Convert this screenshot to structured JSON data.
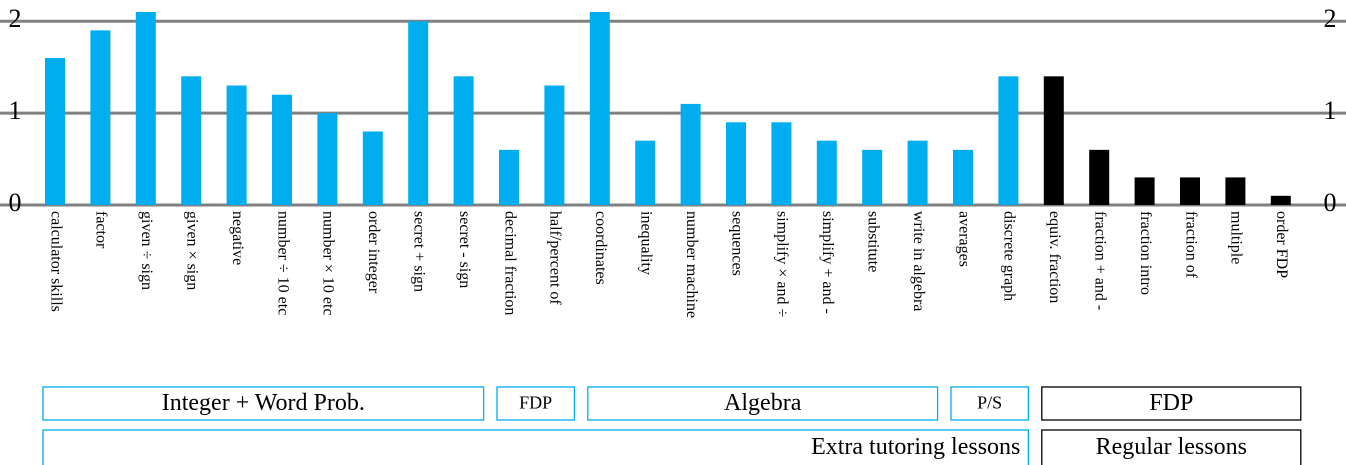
{
  "chart_data": {
    "type": "bar",
    "categories": [
      "calculator skills",
      "factor",
      "given ÷ sign",
      "given × sign",
      "negative",
      "number ÷ 10 etc",
      "number × 10 etc",
      "order integer",
      "secret + sign",
      "secret - sign",
      "decimal fraction",
      "half/percent of",
      "coordinates",
      "inequality",
      "number machine",
      "sequences",
      "simplify × and ÷",
      "simplify + and -",
      "substitute",
      "write in algebra",
      "averages",
      "discrete graph",
      "equiv. fraction",
      "fraction + and -",
      "fraction intro",
      "fraction of",
      "multiple",
      "order FDP"
    ],
    "values": [
      1.6,
      1.9,
      2.1,
      1.4,
      1.3,
      1.2,
      1.0,
      0.8,
      2.0,
      1.4,
      0.6,
      1.3,
      2.1,
      0.7,
      1.1,
      0.9,
      0.9,
      0.7,
      0.6,
      0.7,
      0.6,
      1.4,
      1.4,
      0.6,
      0.3,
      0.3,
      0.3,
      0.1
    ],
    "colors": [
      "#00aeef",
      "#00aeef",
      "#00aeef",
      "#00aeef",
      "#00aeef",
      "#00aeef",
      "#00aeef",
      "#00aeef",
      "#00aeef",
      "#00aeef",
      "#00aeef",
      "#00aeef",
      "#00aeef",
      "#00aeef",
      "#00aeef",
      "#00aeef",
      "#00aeef",
      "#00aeef",
      "#00aeef",
      "#00aeef",
      "#00aeef",
      "#00aeef",
      "#000000",
      "#000000",
      "#000000",
      "#000000",
      "#000000",
      "#000000"
    ],
    "ylim": [
      0,
      2.1
    ],
    "yticks": [
      0,
      1,
      2
    ],
    "y2lim": [
      0,
      2.1
    ],
    "y2ticks": [
      0,
      1,
      2
    ],
    "grid": true,
    "groups": [
      [
        {
          "label": "Integer + Word Prob.",
          "start": 0,
          "end": 9,
          "color": "#00aeef"
        },
        {
          "label": "FDP",
          "start": 10,
          "end": 11,
          "color": "#00aeef",
          "small_caps": true
        },
        {
          "label": "Algebra",
          "start": 12,
          "end": 19,
          "color": "#00aeef"
        },
        {
          "label": "P/S",
          "start": 20,
          "end": 21,
          "color": "#00aeef",
          "small_caps": true
        },
        {
          "label": "FDP",
          "start": 22,
          "end": 27,
          "color": "#000000"
        }
      ],
      [
        {
          "label": "Extra tutoring lessons",
          "start": 0,
          "end": 21,
          "color": "#00aeef"
        },
        {
          "label": "Regular lessons",
          "start": 22,
          "end": 27,
          "color": "#000000"
        }
      ]
    ]
  }
}
